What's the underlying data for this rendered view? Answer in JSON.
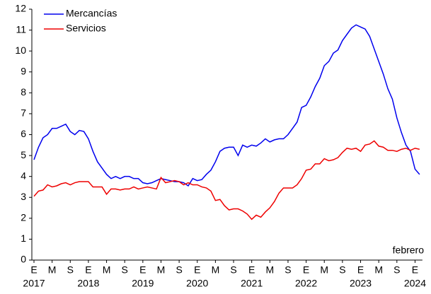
{
  "chart_data": {
    "type": "line",
    "categories": [
      "E",
      null,
      null,
      null,
      "M",
      null,
      null,
      null,
      "S",
      null,
      null,
      null,
      "E",
      null,
      null,
      null,
      "M",
      null,
      null,
      null,
      "S",
      null,
      null,
      null,
      "E",
      null,
      null,
      null,
      "M",
      null,
      null,
      null,
      "S",
      null,
      null,
      null,
      "E",
      null,
      null,
      null,
      "M",
      null,
      null,
      null,
      "S",
      null,
      null,
      null,
      "E",
      null,
      null,
      null,
      "M",
      null,
      null,
      null,
      "S",
      null,
      null,
      null,
      "E",
      null,
      null,
      null,
      "M",
      null,
      null,
      null,
      "S",
      null,
      null,
      null,
      "E",
      null,
      null,
      null,
      "M",
      null,
      null,
      null,
      "S",
      null,
      null,
      null,
      "E",
      null
    ],
    "year_labels": [
      "2017",
      "2018",
      "2019",
      "2020",
      "2021",
      "2022",
      "2023",
      "2024"
    ],
    "annotation": "febrero",
    "ylim": [
      0,
      12
    ],
    "yticks": [
      0,
      1,
      2,
      3,
      4,
      5,
      6,
      7,
      8,
      9,
      10,
      11,
      12
    ],
    "legend": "top-left",
    "series": [
      {
        "name": "Mercancías",
        "color": "#0000ee",
        "values": [
          4.8,
          5.4,
          5.85,
          6.0,
          6.3,
          6.3,
          6.4,
          6.5,
          6.15,
          6.0,
          6.2,
          6.15,
          5.8,
          5.2,
          4.7,
          4.4,
          4.1,
          3.9,
          4.0,
          3.9,
          4.0,
          4.0,
          3.9,
          3.9,
          3.7,
          3.65,
          3.7,
          3.8,
          3.9,
          3.85,
          3.8,
          3.75,
          3.75,
          3.7,
          3.55,
          3.9,
          3.8,
          3.85,
          4.1,
          4.3,
          4.7,
          5.2,
          5.35,
          5.4,
          5.4,
          5.0,
          5.5,
          5.4,
          5.5,
          5.45,
          5.6,
          5.8,
          5.65,
          5.75,
          5.8,
          5.8,
          6.0,
          6.3,
          6.6,
          7.3,
          7.4,
          7.8,
          8.3,
          8.7,
          9.3,
          9.5,
          9.9,
          10.05,
          10.5,
          10.8,
          11.1,
          11.25,
          11.15,
          11.05,
          10.7,
          10.1,
          9.5,
          8.9,
          8.2,
          7.7,
          6.8,
          6.1,
          5.5,
          5.2,
          4.35,
          4.1
        ]
      },
      {
        "name": "Servicios",
        "color": "#ee0000",
        "values": [
          3.05,
          3.3,
          3.35,
          3.6,
          3.5,
          3.55,
          3.65,
          3.7,
          3.6,
          3.7,
          3.75,
          3.75,
          3.75,
          3.5,
          3.5,
          3.5,
          3.15,
          3.4,
          3.4,
          3.35,
          3.4,
          3.4,
          3.5,
          3.4,
          3.45,
          3.5,
          3.45,
          3.4,
          3.95,
          3.7,
          3.75,
          3.8,
          3.75,
          3.6,
          3.7,
          3.6,
          3.6,
          3.5,
          3.45,
          3.3,
          2.85,
          2.9,
          2.6,
          2.4,
          2.45,
          2.45,
          2.35,
          2.2,
          1.95,
          2.15,
          2.05,
          2.3,
          2.5,
          2.8,
          3.2,
          3.45,
          3.45,
          3.45,
          3.6,
          3.9,
          4.3,
          4.35,
          4.6,
          4.6,
          4.85,
          4.75,
          4.8,
          4.9,
          5.15,
          5.35,
          5.3,
          5.35,
          5.2,
          5.5,
          5.55,
          5.7,
          5.45,
          5.4,
          5.25,
          5.25,
          5.2,
          5.3,
          5.35,
          5.25,
          5.35,
          5.3
        ]
      }
    ]
  }
}
